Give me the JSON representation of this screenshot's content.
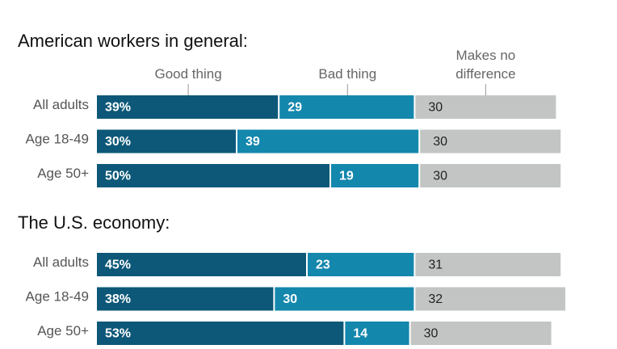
{
  "chart_data": [
    {
      "type": "bar",
      "orientation": "horizontal",
      "stacked": true,
      "title": "American workers in general:",
      "categories": [
        "All adults",
        "Age 18-49",
        "Age 50+"
      ],
      "xlim": [
        0,
        100
      ],
      "series": [
        {
          "name": "Good thing",
          "color": "#0d5878",
          "values": [
            39,
            30,
            50
          ],
          "value_labels": [
            "39%",
            "30%",
            "50%"
          ]
        },
        {
          "name": "Bad thing",
          "color": "#1487ad",
          "values": [
            29,
            39,
            19
          ]
        },
        {
          "name": "Makes no difference",
          "color": "#c3c5c5",
          "values": [
            30,
            30,
            30
          ]
        }
      ]
    },
    {
      "type": "bar",
      "orientation": "horizontal",
      "stacked": true,
      "title": "The U.S. economy:",
      "categories": [
        "All adults",
        "Age 18-49",
        "Age 50+"
      ],
      "xlim": [
        0,
        100
      ],
      "series": [
        {
          "color": "#0d5878",
          "values": [
            45,
            38,
            53
          ],
          "value_labels": [
            "45%",
            "38%",
            "53%"
          ]
        },
        {
          "color": "#1487ad",
          "values": [
            23,
            30,
            14
          ]
        },
        {
          "color": "#c3c5c5",
          "values": [
            31,
            32,
            30
          ]
        }
      ]
    }
  ]
}
